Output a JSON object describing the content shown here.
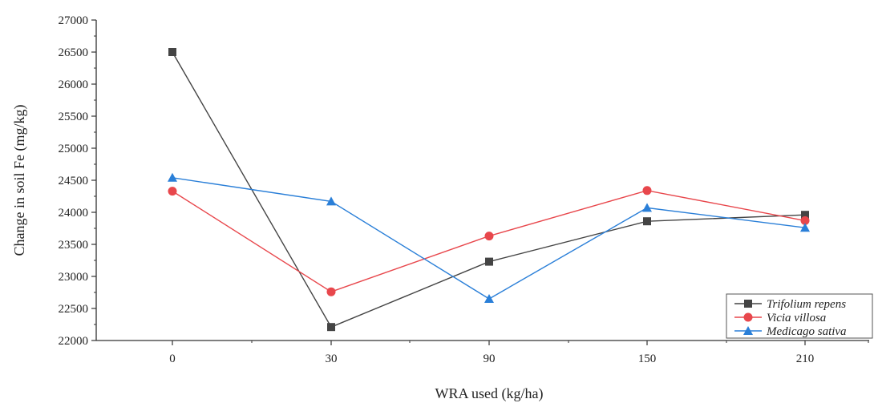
{
  "chart_data": {
    "type": "line",
    "title": "",
    "xlabel": "WRA used (kg/ha)",
    "ylabel": "Change in soil Fe (mg/kg)",
    "categories": [
      "0",
      "30",
      "90",
      "150",
      "210"
    ],
    "ylim": [
      22000,
      27000
    ],
    "yticks": [
      22000,
      22500,
      23000,
      23500,
      24000,
      24500,
      25000,
      25500,
      26000,
      26500,
      27000
    ],
    "grid": false,
    "legend_position": "bottom-right",
    "series": [
      {
        "name": "Trifolium repens",
        "color": "#444444",
        "marker": "square",
        "values": [
          26500,
          22210,
          23230,
          23860,
          23960
        ]
      },
      {
        "name": "Vicia villosa",
        "color": "#e8474c",
        "marker": "circle",
        "values": [
          24330,
          22760,
          23630,
          24340,
          23870
        ]
      },
      {
        "name": "Medicago sativa",
        "color": "#2a7fd8",
        "marker": "triangle",
        "values": [
          24540,
          24170,
          22650,
          24070,
          23760
        ]
      }
    ]
  }
}
